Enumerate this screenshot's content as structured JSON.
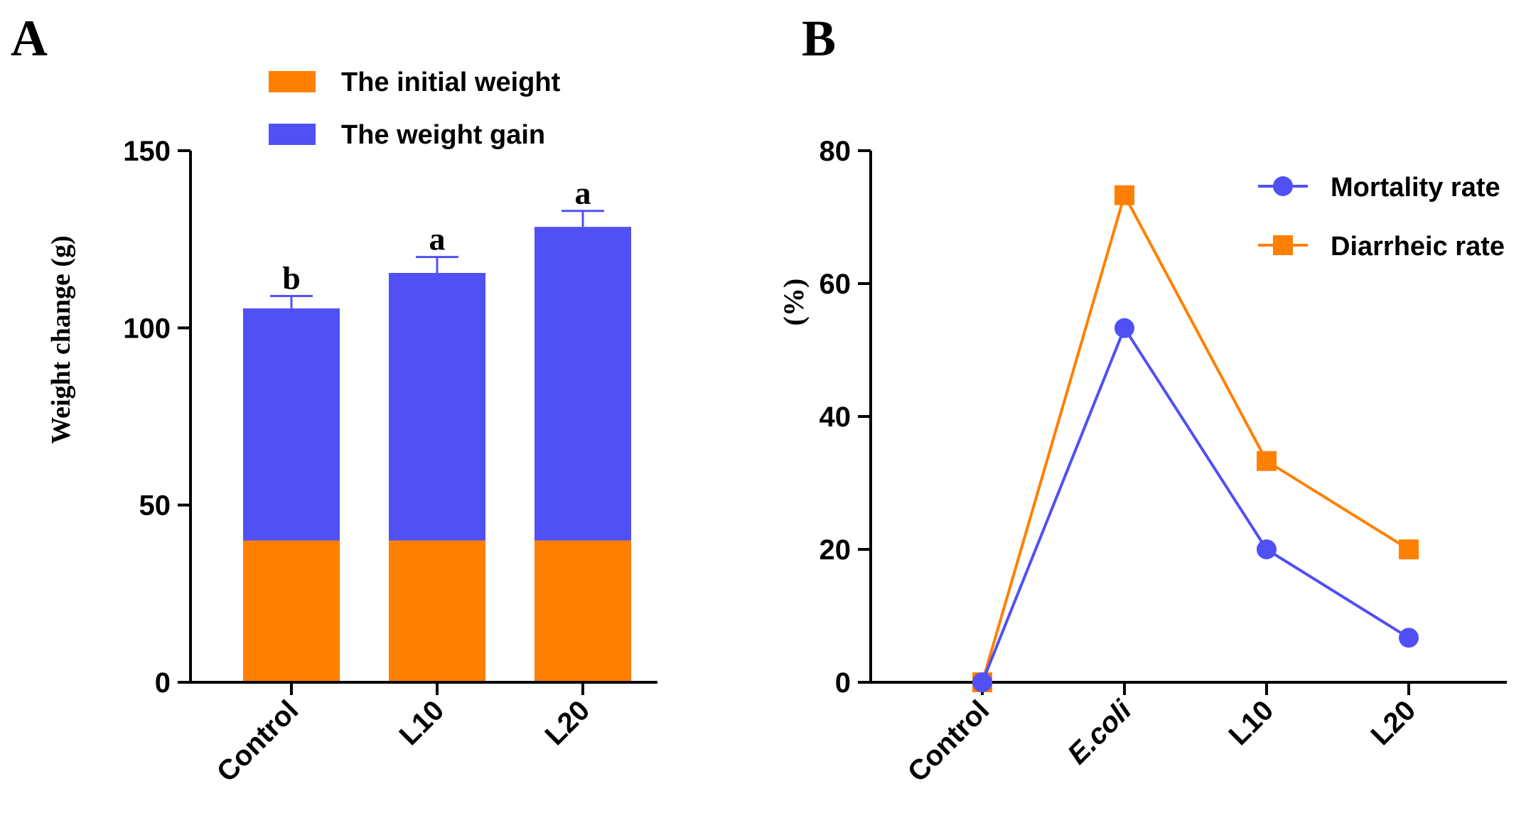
{
  "colors": {
    "orange": "#ff8000",
    "blue": "#5050f5",
    "axis": "#000000"
  },
  "chart_data": [
    {
      "panel": "A",
      "type": "bar",
      "stacked": true,
      "ylabel": "Weight change (g)",
      "ylim": [
        0,
        150
      ],
      "yticks": [
        0,
        50,
        100,
        150
      ],
      "categories": [
        "Control",
        "L10",
        "L20"
      ],
      "series": [
        {
          "name": "The initial weight",
          "values": [
            40,
            40,
            40
          ],
          "error": [
            0.5,
            0.5,
            0.5
          ]
        },
        {
          "name": "The weight gain",
          "values": [
            65.5,
            75.5,
            88.5
          ],
          "error": [
            3.5,
            4.5,
            4.5
          ]
        }
      ],
      "significance": [
        "b",
        "a",
        "a"
      ],
      "legend": "top"
    },
    {
      "panel": "B",
      "type": "line",
      "ylabel": "(%)",
      "ylim": [
        0,
        80
      ],
      "yticks": [
        0,
        20,
        40,
        60,
        80
      ],
      "categories": [
        "Control",
        "E.coli",
        "L10",
        "L20"
      ],
      "series": [
        {
          "name": "Mortality rate",
          "marker": "circle",
          "values": [
            0,
            53.3,
            20,
            6.7
          ]
        },
        {
          "name": "Diarrheic rate",
          "marker": "square",
          "values": [
            0,
            73.3,
            33.3,
            20
          ]
        }
      ],
      "legend": "top-right"
    }
  ]
}
